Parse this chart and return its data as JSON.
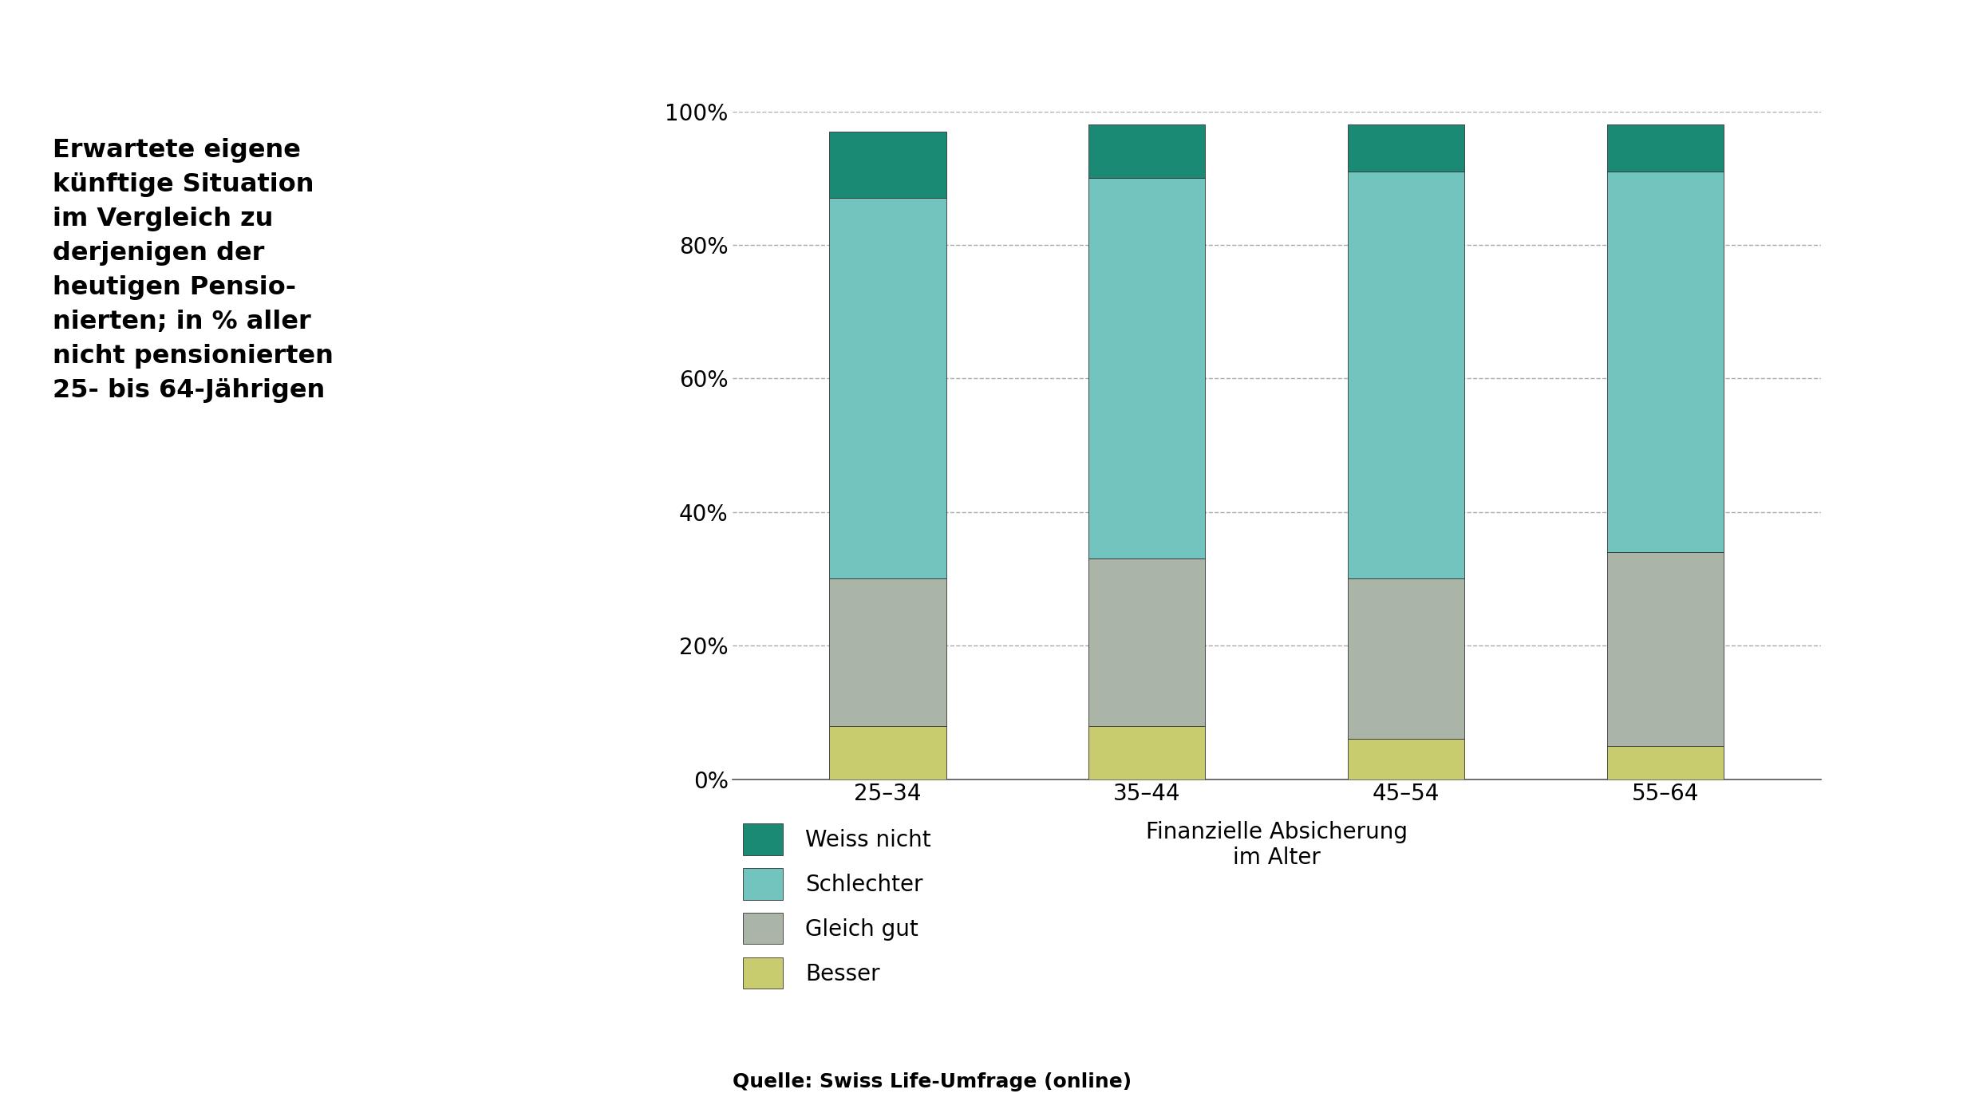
{
  "categories": [
    "25–34",
    "35–44",
    "45–54",
    "55–64"
  ],
  "series": {
    "Besser": [
      8,
      8,
      6,
      5
    ],
    "Gleich gut": [
      22,
      25,
      24,
      29
    ],
    "Schlechter": [
      57,
      57,
      61,
      57
    ],
    "Weiss nicht": [
      10,
      8,
      7,
      7
    ]
  },
  "colors": {
    "Besser": "#c8cc6e",
    "Gleich gut": "#aab5a8",
    "Schlechter": "#72c4be",
    "Weiss nicht": "#1a8a74"
  },
  "xlabel": "Finanzielle Absicherung\nim Alter",
  "ylim": [
    0,
    100
  ],
  "yticks": [
    0,
    20,
    40,
    60,
    80,
    100
  ],
  "yticklabels": [
    "0%",
    "20%",
    "40%",
    "60%",
    "80%",
    "100%"
  ],
  "title_text": "Erwartete eigene\nkünftige Situation\nim Vergleich zu\nderjenigen der\nheutigen Pensio-\nnierten; in % aller\nnicht pensionierten\n25- bis 64-Jährigen",
  "source_text": "Quelle: Swiss Life-Umfrage (online)",
  "legend_order": [
    "Weiss nicht",
    "Schlechter",
    "Gleich gut",
    "Besser"
  ],
  "bar_width": 0.45,
  "background_color": "#ffffff",
  "grid_color": "#aaaaaa",
  "axis_color": "#555555",
  "title_fontsize": 23,
  "tick_fontsize": 20,
  "legend_fontsize": 20,
  "xlabel_fontsize": 20,
  "source_fontsize": 18
}
